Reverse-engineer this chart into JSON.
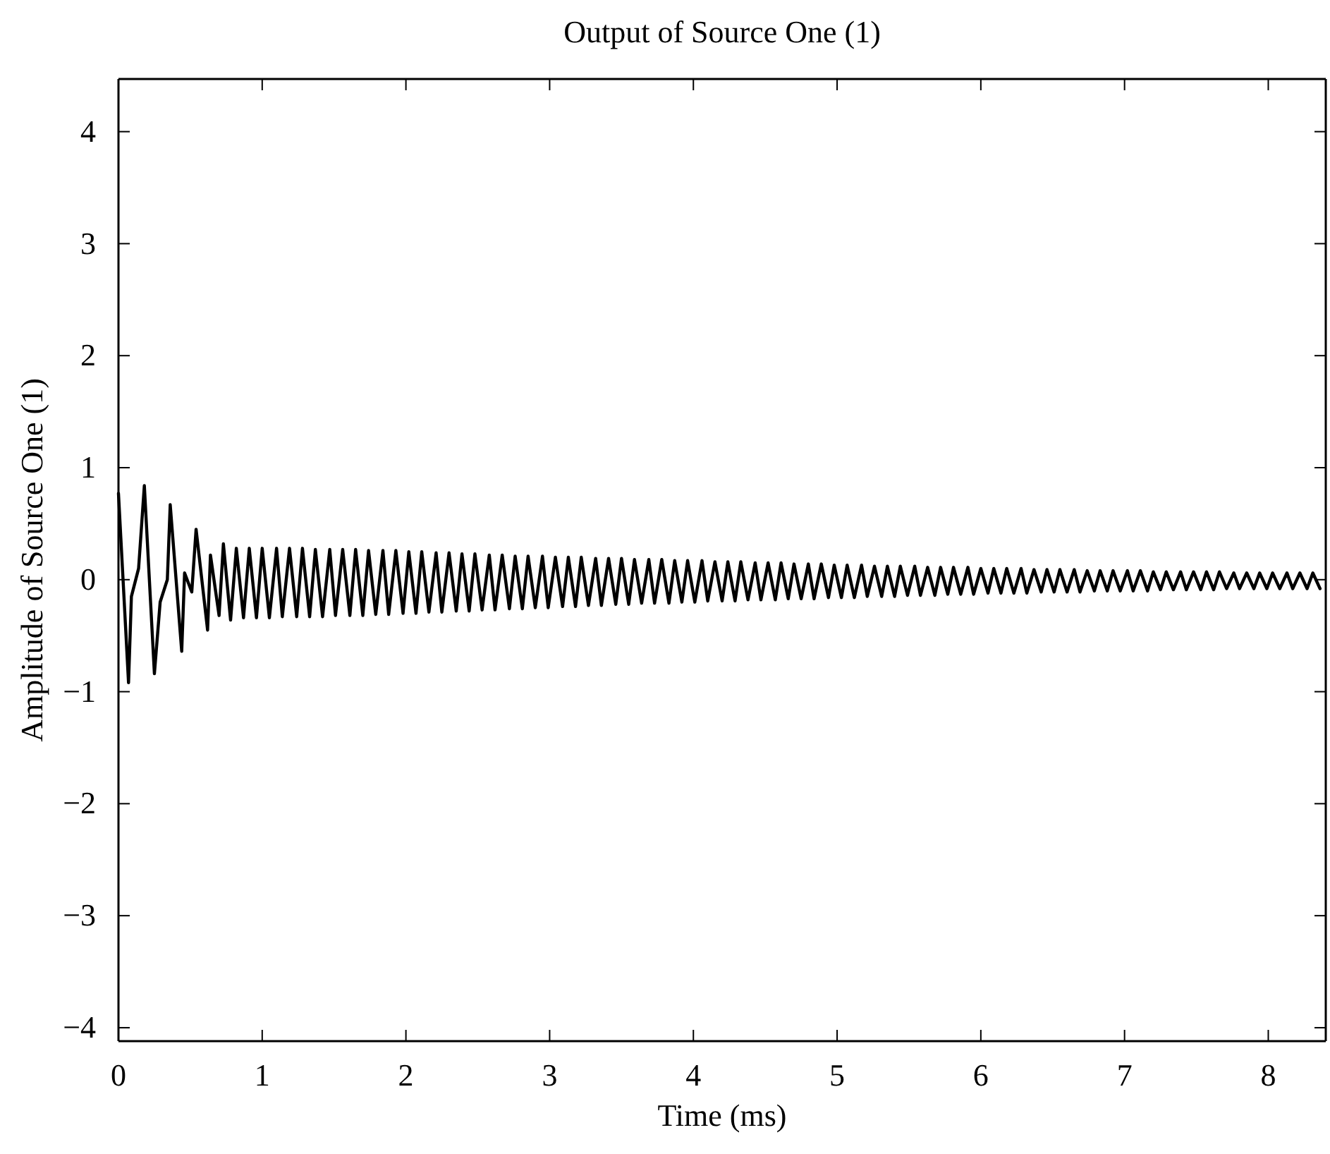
{
  "chart_data": {
    "type": "line",
    "title": "Output of Source One (1)",
    "xlabel": "Time (ms)",
    "ylabel": "Amplitude of Source One (1)",
    "xlim": [
      0,
      8.4
    ],
    "xticks": [
      0,
      1,
      2,
      3,
      4,
      5,
      6,
      7,
      8
    ],
    "ylim": [
      -4.12,
      4.47
    ],
    "yticks": [
      -4,
      -3,
      -2,
      -1,
      0,
      1,
      2,
      3,
      4
    ],
    "marker": "none",
    "line_style": "solid",
    "series": [
      {
        "color": "#000000",
        "x": [
          0,
          0.07,
          0.09,
          0.14,
          0.18,
          0.25,
          0.29,
          0.34,
          0.36,
          0.44,
          0.46,
          0.51,
          0.54,
          0.62,
          0.64,
          0.7,
          0.73,
          0.78,
          0.82,
          0.87,
          0.91,
          0.96,
          1.0,
          1.05,
          1.1,
          1.14,
          1.19,
          1.24,
          1.28,
          1.33,
          1.37,
          1.42,
          1.47,
          1.51,
          1.56,
          1.61,
          1.65,
          1.7,
          1.74,
          1.79,
          1.84,
          1.88,
          1.93,
          1.98,
          2.02,
          2.07,
          2.11,
          2.16,
          2.21,
          2.25,
          2.3,
          2.35,
          2.39,
          2.44,
          2.48,
          2.53,
          2.58,
          2.62,
          2.67,
          2.72,
          2.76,
          2.81,
          2.85,
          2.9,
          2.95,
          2.99,
          3.04,
          3.09,
          3.13,
          3.18,
          3.22,
          3.27,
          3.32,
          3.36,
          3.41,
          3.46,
          3.5,
          3.55,
          3.59,
          3.64,
          3.69,
          3.73,
          3.78,
          3.83,
          3.87,
          3.92,
          3.96,
          4.01,
          4.06,
          4.1,
          4.15,
          4.2,
          4.24,
          4.29,
          4.33,
          4.38,
          4.43,
          4.47,
          4.52,
          4.57,
          4.61,
          4.66,
          4.7,
          4.75,
          4.8,
          4.84,
          4.89,
          4.94,
          4.98,
          5.03,
          5.07,
          5.12,
          5.17,
          5.21,
          5.26,
          5.31,
          5.35,
          5.4,
          5.44,
          5.49,
          5.54,
          5.58,
          5.63,
          5.68,
          5.72,
          5.77,
          5.81,
          5.86,
          5.91,
          5.95,
          6.0,
          6.05,
          6.09,
          6.14,
          6.18,
          6.23,
          6.28,
          6.32,
          6.37,
          6.42,
          6.46,
          6.51,
          6.55,
          6.6,
          6.65,
          6.69,
          6.74,
          6.79,
          6.83,
          6.88,
          6.92,
          6.97,
          7.02,
          7.06,
          7.11,
          7.16,
          7.2,
          7.25,
          7.29,
          7.34,
          7.39,
          7.43,
          7.48,
          7.53,
          7.57,
          7.62,
          7.66,
          7.71,
          7.76,
          7.8,
          7.85,
          7.9,
          7.94,
          7.99,
          8.03,
          8.08,
          8.13,
          8.17,
          8.22,
          8.27,
          8.31,
          8.36
        ],
        "values": [
          0.77,
          -0.92,
          -0.15,
          0.1,
          0.84,
          -0.84,
          -0.2,
          0.0,
          0.67,
          -0.64,
          0.06,
          -0.11,
          0.45,
          -0.45,
          0.22,
          -0.32,
          0.32,
          -0.36,
          0.28,
          -0.34,
          0.28,
          -0.34,
          0.28,
          -0.34,
          0.28,
          -0.33,
          0.28,
          -0.33,
          0.28,
          -0.33,
          0.27,
          -0.33,
          0.27,
          -0.32,
          0.27,
          -0.32,
          0.27,
          -0.32,
          0.26,
          -0.31,
          0.26,
          -0.31,
          0.26,
          -0.3,
          0.25,
          -0.3,
          0.25,
          -0.29,
          0.24,
          -0.29,
          0.24,
          -0.28,
          0.23,
          -0.28,
          0.23,
          -0.27,
          0.22,
          -0.27,
          0.22,
          -0.26,
          0.21,
          -0.26,
          0.21,
          -0.25,
          0.21,
          -0.25,
          0.2,
          -0.24,
          0.2,
          -0.24,
          0.2,
          -0.23,
          0.19,
          -0.23,
          0.19,
          -0.22,
          0.19,
          -0.22,
          0.18,
          -0.21,
          0.18,
          -0.21,
          0.18,
          -0.21,
          0.17,
          -0.2,
          0.17,
          -0.2,
          0.17,
          -0.19,
          0.16,
          -0.19,
          0.16,
          -0.19,
          0.16,
          -0.18,
          0.15,
          -0.18,
          0.15,
          -0.18,
          0.15,
          -0.17,
          0.14,
          -0.17,
          0.14,
          -0.17,
          0.14,
          -0.16,
          0.13,
          -0.16,
          0.13,
          -0.16,
          0.13,
          -0.15,
          0.12,
          -0.15,
          0.12,
          -0.15,
          0.12,
          -0.14,
          0.12,
          -0.14,
          0.11,
          -0.14,
          0.11,
          -0.13,
          0.11,
          -0.13,
          0.11,
          -0.13,
          0.1,
          -0.12,
          0.1,
          -0.12,
          0.1,
          -0.12,
          0.1,
          -0.12,
          0.09,
          -0.11,
          0.09,
          -0.11,
          0.09,
          -0.11,
          0.09,
          -0.11,
          0.08,
          -0.1,
          0.08,
          -0.1,
          0.08,
          -0.1,
          0.08,
          -0.1,
          0.08,
          -0.1,
          0.07,
          -0.09,
          0.07,
          -0.09,
          0.07,
          -0.09,
          0.07,
          -0.09,
          0.07,
          -0.09,
          0.07,
          -0.08,
          0.06,
          -0.08,
          0.06,
          -0.08,
          0.06,
          -0.08,
          0.06,
          -0.08,
          0.06,
          -0.08,
          0.06,
          -0.08,
          0.06,
          -0.08
        ]
      }
    ]
  }
}
